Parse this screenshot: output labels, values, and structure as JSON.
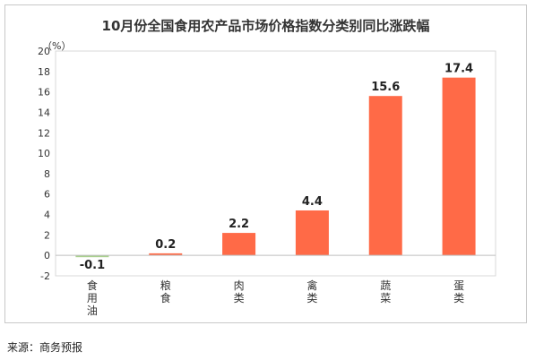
{
  "title": "10月份全国食用农产品市场价格指数分类别同比涨跌幅",
  "source": "来源：商务预报",
  "chart_data": {
    "type": "bar",
    "title": "10月份全国食用农产品市场价格指数分类别同比涨跌幅",
    "ylabel": "（%）",
    "ylim": [
      -2,
      20
    ],
    "yticks": [
      20,
      18,
      16,
      14,
      12,
      10,
      8,
      6,
      4,
      2,
      0,
      -2
    ],
    "categories": [
      "食用油",
      "粮食",
      "肉类",
      "禽类",
      "蔬菜",
      "蛋类"
    ],
    "values": [
      -0.1,
      0.2,
      2.2,
      4.4,
      15.6,
      17.4
    ],
    "data_labels": [
      "-0.1",
      "0.2",
      "2.2",
      "4.4",
      "15.6",
      "17.4"
    ],
    "bar_color": "#ff6a47",
    "negative_bar_color": "#a9d18e",
    "grid": false,
    "legend": "none"
  }
}
